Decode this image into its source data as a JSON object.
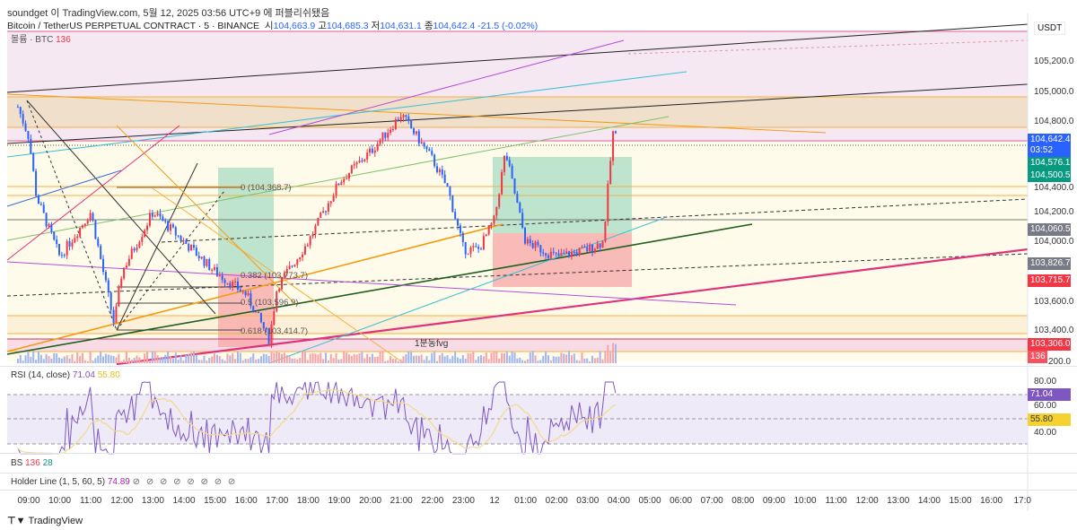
{
  "publish_note": "soundget 이 TradingView.com, 5월 12, 2025 03:56 UTC+9 에 퍼블리쉬됐음",
  "symbol": {
    "name": "Bitcoin / TetherUS PERPETUAL CONTRACT · 5 · BINANCE",
    "open_label": "시",
    "open": "104,663.9",
    "high_label": "고",
    "high": "104,685.3",
    "low_label": "저",
    "low": "104,631.1",
    "close_label": "종",
    "close": "104,642.4",
    "change": "-21.5 (-0.02%)"
  },
  "volume_legend": {
    "label": "볼륨 · BTC",
    "value": "136"
  },
  "currency": "USDT",
  "price_ticks": [
    "105,200.0",
    "105,000.0",
    "104,800.0",
    "104,400.0",
    "104,200.0",
    "104,000.0",
    "103,600.0",
    "103,400.0",
    "200.0"
  ],
  "price_labels": [
    {
      "text": "104,642.4",
      "sub": "03:52",
      "color": "#2962ff"
    },
    {
      "text": "104,576.1",
      "color": "#089981"
    },
    {
      "text": "104,500.5",
      "color": "#089981"
    },
    {
      "text": "104,060.5",
      "color": "#787b86"
    },
    {
      "text": "103,826.7",
      "color": "#787b86"
    },
    {
      "text": "103,715.7",
      "color": "#f23645"
    },
    {
      "text": "103,306.0",
      "color": "#f23645"
    },
    {
      "text": "136",
      "color": "#f7525f"
    }
  ],
  "fib_labels": [
    "0 (104,368.7)",
    "0.382 (103,773.7)",
    "0.5 (103,596.9)",
    "0.618 (103,414.7)"
  ],
  "annotation": "1분동fvg",
  "rsi": {
    "title": "RSI (14, close)",
    "value": "71.04",
    "ma": "55.80",
    "ticks": [
      "80.00",
      "60.00",
      "40.00"
    ],
    "value_color": "#7e57c2",
    "ma_color": "#f5d22f"
  },
  "bs": {
    "title": "BS",
    "v1": "136",
    "v2": "28"
  },
  "holder": {
    "title": "Holder Line (1, 5, 60, 5)",
    "value": "74.89",
    "symbols": [
      "⊘",
      "⊘",
      "⊘",
      "⊘",
      "⊘",
      "⊘",
      "⊘",
      "⊘"
    ]
  },
  "time_ticks": [
    "09:00",
    "10:00",
    "11:00",
    "12:00",
    "13:00",
    "14:00",
    "15:00",
    "16:00",
    "17:00",
    "18:00",
    "19:00",
    "20:00",
    "21:00",
    "22:00",
    "23:00",
    "12",
    "01:00",
    "02:00",
    "03:00",
    "04:00",
    "05:00",
    "06:00",
    "07:00",
    "08:00",
    "09:00",
    "10:00",
    "11:00",
    "12:00",
    "13:00",
    "14:00",
    "15:00",
    "16:00",
    "17:0"
  ],
  "brand": "TradingView",
  "chart_data": {
    "type": "candlestick",
    "title": "Bitcoin / TetherUS PERPETUAL CONTRACT · 5 · BINANCE",
    "ylabel": "USDT",
    "ylim": [
      103200,
      105300
    ],
    "price_path": {
      "hours": [
        -0.35,
        0,
        0.25,
        1,
        1.5,
        2,
        2.75,
        3,
        4,
        4.5,
        5,
        6,
        7,
        7.75,
        8,
        9,
        10,
        11,
        12,
        12.5,
        13,
        13.5,
        14,
        14.5,
        15,
        15.35,
        16,
        17,
        18,
        18.5,
        18.67,
        18.85,
        18.93
      ],
      "prices": [
        104900,
        104700,
        104300,
        103900,
        104050,
        104200,
        103450,
        103800,
        104200,
        104100,
        104000,
        103800,
        103650,
        103350,
        103700,
        104000,
        104400,
        104600,
        104850,
        104700,
        104550,
        104350,
        103950,
        103950,
        104150,
        104600,
        104000,
        103900,
        103950,
        104000,
        104400,
        104800,
        104642
      ]
    },
    "x_origin": "09:00"
  }
}
